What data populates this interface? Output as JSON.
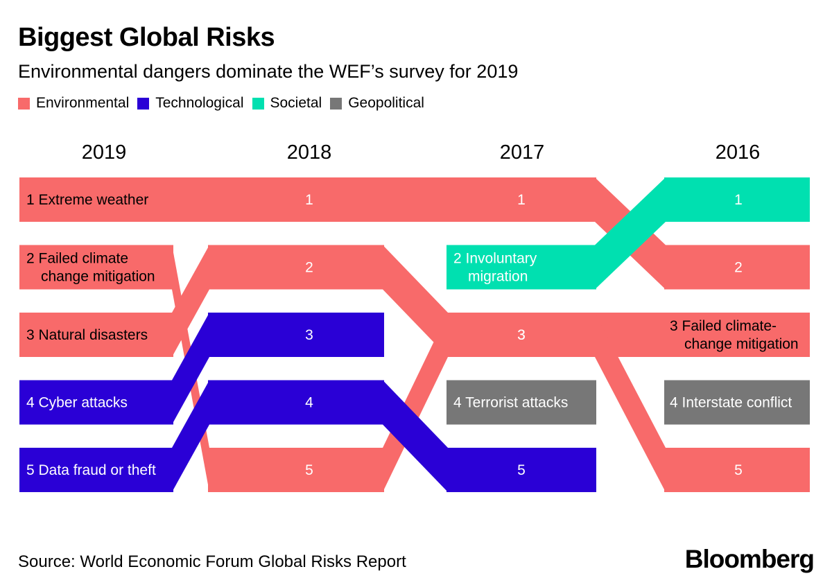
{
  "title": "Biggest Global Risks",
  "subtitle": "Environmental dangers dominate the WEF’s survey for 2019",
  "legend": [
    {
      "label": "Environmental",
      "color": "#f86a6a"
    },
    {
      "label": "Technological",
      "color": "#2a00d6"
    },
    {
      "label": "Societal",
      "color": "#00e0b0"
    },
    {
      "label": "Geopolitical",
      "color": "#777777"
    }
  ],
  "source": "Source: World Economic Forum Global Risks Report",
  "logo": "Bloomberg",
  "chart_data": {
    "type": "bump",
    "title": "Biggest Global Risks",
    "years": [
      "2019",
      "2018",
      "2017",
      "2016"
    ],
    "categories": {
      "Environmental": "#f86a6a",
      "Technological": "#2a00d6",
      "Societal": "#00e0b0",
      "Geopolitical": "#777777"
    },
    "series": [
      {
        "name": "Extreme weather",
        "category": "Environmental",
        "ranks": [
          1,
          1,
          1,
          2
        ],
        "label_2019": "Extreme weather"
      },
      {
        "name": "Failed climate change mitigation",
        "category": "Environmental",
        "ranks": [
          2,
          5,
          3,
          3
        ],
        "label_2019": [
          "Failed climate",
          "change mitigation"
        ],
        "label_2016": [
          "Failed climate-",
          "change mitigation"
        ]
      },
      {
        "name": "Natural disasters",
        "category": "Environmental",
        "ranks": [
          3,
          2,
          3,
          5
        ],
        "label_2019": "Natural disasters"
      },
      {
        "name": "Cyber attacks",
        "category": "Technological",
        "ranks": [
          4,
          3,
          null,
          null
        ],
        "label_2019": "Cyber attacks"
      },
      {
        "name": "Data fraud or theft",
        "category": "Technological",
        "ranks": [
          5,
          4,
          5,
          null
        ],
        "label_2019": "Data fraud or theft"
      },
      {
        "name": "Involuntary migration",
        "category": "Societal",
        "ranks": [
          null,
          null,
          2,
          1
        ],
        "label_2017": [
          "Involuntary",
          "migration"
        ]
      },
      {
        "name": "Terrorist attacks",
        "category": "Geopolitical",
        "ranks": [
          null,
          null,
          4,
          null
        ],
        "label_2017": "Terrorist attacks"
      },
      {
        "name": "Interstate conflict",
        "category": "Geopolitical",
        "ranks": [
          null,
          null,
          null,
          4
        ],
        "label_2016": "Interstate conflict"
      }
    ]
  }
}
